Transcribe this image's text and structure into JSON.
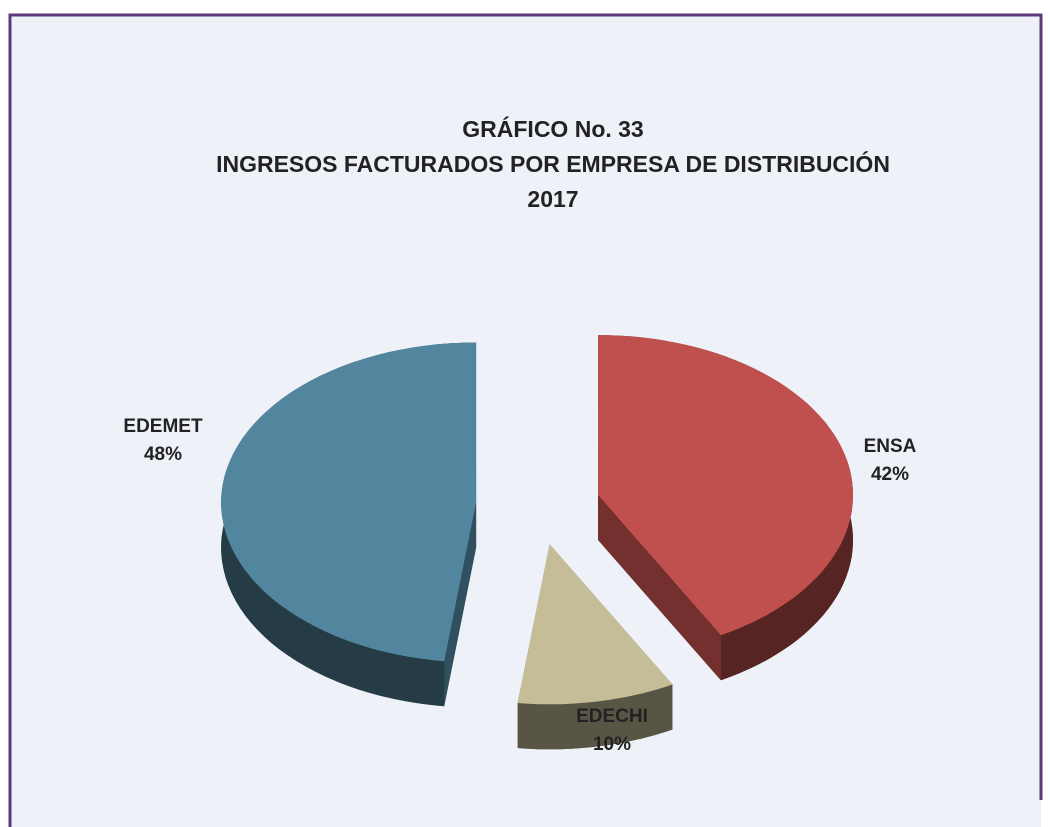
{
  "chart_data": {
    "type": "pie",
    "title": [
      "GRÁFICO  No. 33",
      "INGRESOS FACTURADOS POR EMPRESA DE DISTRIBUCIÓN",
      "2017"
    ],
    "categories": [
      "ENSA",
      "EDECHI",
      "EDEMET"
    ],
    "values": [
      42,
      10,
      48
    ],
    "value_labels": [
      "42%",
      "10%",
      "48%"
    ],
    "colors": [
      "#c0504d",
      "#c4bd97",
      "#52869e"
    ]
  }
}
